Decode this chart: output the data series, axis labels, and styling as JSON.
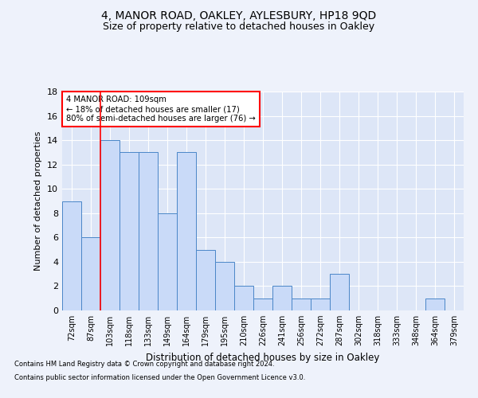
{
  "title": "4, MANOR ROAD, OAKLEY, AYLESBURY, HP18 9QD",
  "subtitle": "Size of property relative to detached houses in Oakley",
  "xlabel": "Distribution of detached houses by size in Oakley",
  "ylabel": "Number of detached properties",
  "categories": [
    "72sqm",
    "87sqm",
    "103sqm",
    "118sqm",
    "133sqm",
    "149sqm",
    "164sqm",
    "179sqm",
    "195sqm",
    "210sqm",
    "226sqm",
    "241sqm",
    "256sqm",
    "272sqm",
    "287sqm",
    "302sqm",
    "318sqm",
    "333sqm",
    "348sqm",
    "364sqm",
    "379sqm"
  ],
  "values": [
    9,
    6,
    14,
    13,
    13,
    8,
    13,
    5,
    4,
    2,
    1,
    2,
    1,
    1,
    3,
    0,
    0,
    0,
    0,
    1,
    0
  ],
  "bar_color": "#c9daf8",
  "bar_edge_color": "#4a86c8",
  "highlight_index": 2,
  "property_size": "109sqm",
  "annotation_line1": "4 MANOR ROAD: 109sqm",
  "annotation_line2": "← 18% of detached houses are smaller (17)",
  "annotation_line3": "80% of semi-detached houses are larger (76) →",
  "footnote1": "Contains HM Land Registry data © Crown copyright and database right 2024.",
  "footnote2": "Contains public sector information licensed under the Open Government Licence v3.0.",
  "ylim": [
    0,
    18
  ],
  "background_color": "#eef2fb",
  "plot_bg_color": "#dde6f7",
  "grid_color": "#ffffff",
  "title_fontsize": 10,
  "subtitle_fontsize": 9
}
